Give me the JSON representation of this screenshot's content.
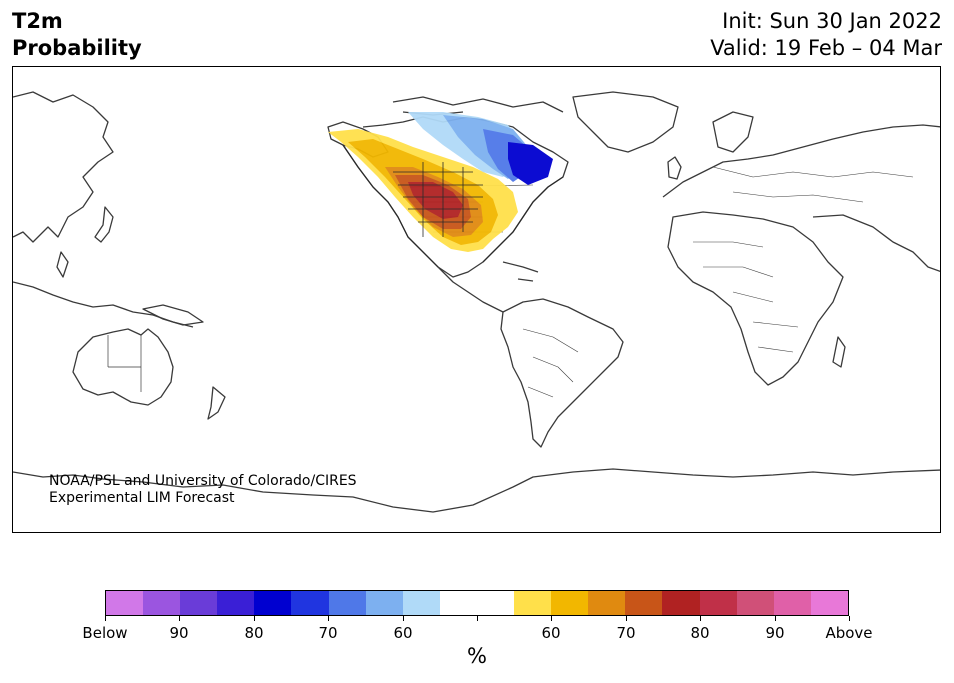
{
  "title": {
    "line1": "T2m",
    "line2": "Probability"
  },
  "init": {
    "line1": "Init: Sun 30 Jan 2022",
    "line2": "Valid: 19 Feb – 04 Mar"
  },
  "credit": {
    "line1": "NOAA/PSL and University of Colorado/CIRES",
    "line2": "Experimental LIM Forecast"
  },
  "colorbar": {
    "unit": "%",
    "colors": [
      "#d178e8",
      "#9b55e0",
      "#6a3cd8",
      "#3a1fd6",
      "#0000d0",
      "#2035e0",
      "#4f78e8",
      "#7db0f0",
      "#b0daf8",
      "#ffffff",
      "#ffffff",
      "#ffe04a",
      "#f2b700",
      "#e08a10",
      "#c85518",
      "#b02222",
      "#c03048",
      "#d05078",
      "#e060a8",
      "#e878d8"
    ],
    "labels": [
      "Below",
      "90",
      "80",
      "70",
      "60",
      "",
      "60",
      "70",
      "80",
      "90",
      "Above"
    ]
  },
  "forecast_regions": [
    {
      "name": "above-light",
      "color": "#ffe04a"
    },
    {
      "name": "above-60",
      "color": "#f2b700"
    },
    {
      "name": "above-70",
      "color": "#e08a10"
    },
    {
      "name": "above-75",
      "color": "#c85518"
    },
    {
      "name": "above-80",
      "color": "#b02222"
    },
    {
      "name": "below-light",
      "color": "#b0daf8"
    },
    {
      "name": "below-60",
      "color": "#7db0f0"
    },
    {
      "name": "below-70",
      "color": "#4f78e8"
    },
    {
      "name": "below-80",
      "color": "#0000d0"
    }
  ]
}
